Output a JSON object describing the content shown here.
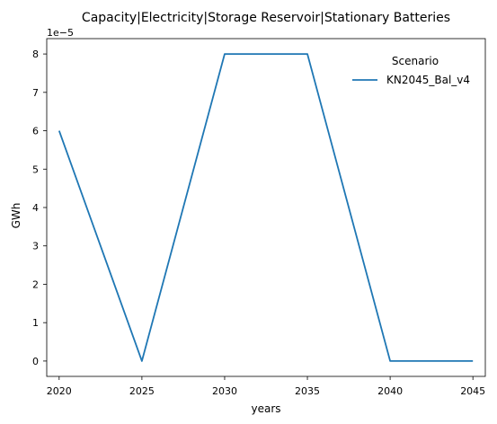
{
  "chart_data": {
    "type": "line",
    "title": "Capacity|Electricity|Storage Reservoir|Stationary Batteries",
    "xlabel": "years",
    "ylabel": "GWh",
    "y_multiplier_label": "1e−5",
    "x": [
      2020,
      2025,
      2030,
      2035,
      2040,
      2045
    ],
    "xticks": [
      "2020",
      "2025",
      "2030",
      "2035",
      "2040",
      "2045"
    ],
    "yticks": [
      "0",
      "1",
      "2",
      "3",
      "4",
      "5",
      "6",
      "7",
      "8"
    ],
    "xlim": [
      2019.25,
      2045.75
    ],
    "ylim": [
      -0.4,
      8.4
    ],
    "y_scale": 1e-05,
    "grid": false,
    "legend": {
      "title": "Scenario",
      "placement": "top-right"
    },
    "series": [
      {
        "name": "KN2045_Bal_v4",
        "color": "#1f77b4",
        "values": [
          6,
          0,
          8,
          8,
          0,
          0
        ]
      }
    ]
  }
}
